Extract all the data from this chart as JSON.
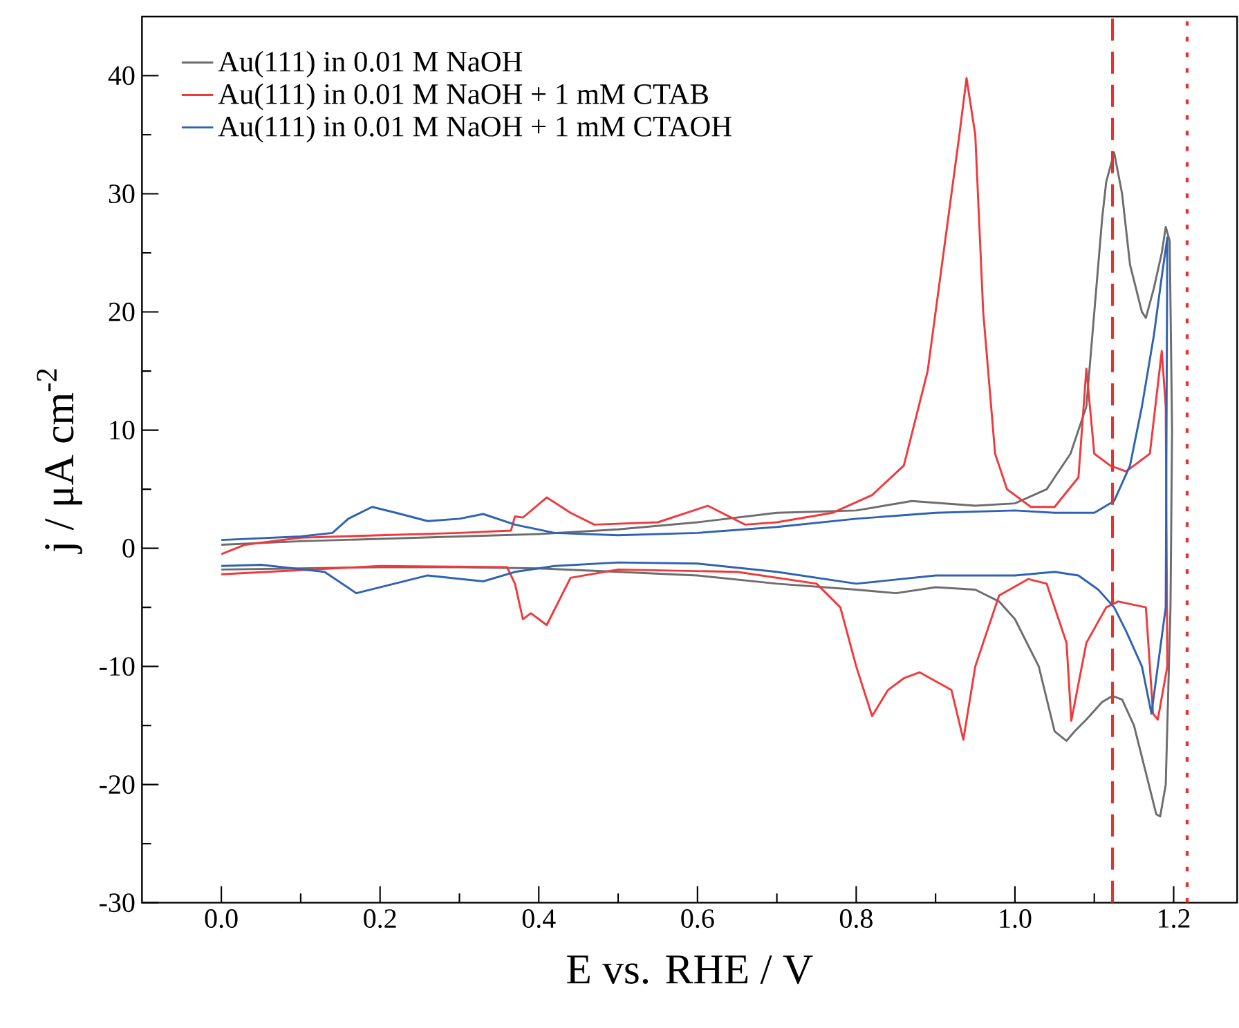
{
  "chart_data": {
    "type": "line",
    "xlabel": "E vs. RHE / V",
    "ylabel": "j / μA cm$^{-2}$",
    "xlim": [
      -0.1,
      1.28
    ],
    "ylim": [
      -30,
      45
    ],
    "xticks": [
      {
        "value": 0.0,
        "label": "0.0"
      },
      {
        "value": 0.1,
        "label": null
      },
      0.2,
      {
        "value": 0.3,
        "label": null
      },
      0.4,
      {
        "value": 0.5,
        "label": null
      },
      0.6,
      {
        "value": 0.7,
        "label": null
      },
      0.8,
      {
        "value": 0.9,
        "label": null
      },
      {
        "value": 1.0,
        "label": "1.0"
      },
      {
        "value": 1.1,
        "label": null
      },
      1.2
    ],
    "yticks": [
      -30,
      {
        "value": -25,
        "label": null
      },
      -20,
      {
        "value": -15,
        "label": null
      },
      -10,
      {
        "value": -5,
        "label": null
      },
      0,
      {
        "value": 5,
        "label": null
      },
      10,
      {
        "value": 15,
        "label": null
      },
      20,
      {
        "value": 25,
        "label": null
      },
      30,
      {
        "value": 35,
        "label": null
      },
      40
    ],
    "legend": "top left",
    "line_style": "solid",
    "marker": "none",
    "ref_lines": [
      {
        "axis": "x",
        "value": 1.123,
        "color": "#e8302f",
        "line_style": "dashed"
      },
      {
        "axis": "x",
        "value": 1.217,
        "color": "#e8302f",
        "line_style": "dotted"
      }
    ],
    "series": [
      {
        "name": "Au(111) in 0.01 M NaOH",
        "color": "#6d6d6d",
        "x": [
          0,
          0.1,
          0.2,
          0.3,
          0.4,
          0.5,
          0.6,
          0.7,
          0.8,
          0.87,
          0.95,
          1.0,
          1.04,
          1.07,
          1.09,
          1.1,
          1.11,
          1.115,
          1.125,
          1.135,
          1.145,
          1.16,
          1.165,
          1.175,
          1.185,
          1.19,
          1.195,
          1.198,
          1.196,
          1.19,
          1.183,
          1.178,
          1.165,
          1.15,
          1.135,
          1.123,
          1.11,
          1.09,
          1.075,
          1.065,
          1.05,
          1.03,
          1.0,
          0.98,
          0.95,
          0.9,
          0.85,
          0.8,
          0.7,
          0.6,
          0.5,
          0.4,
          0.3,
          0.2,
          0.1,
          0.0
        ],
        "values": [
          0.3,
          0.6,
          0.8,
          1.0,
          1.2,
          1.6,
          2.2,
          3.0,
          3.2,
          4.0,
          3.6,
          3.8,
          5,
          8,
          12,
          20,
          28,
          31,
          33.5,
          30,
          24,
          20,
          19.5,
          22,
          25,
          27.2,
          26,
          10,
          -5,
          -20,
          -22.7,
          -22.5,
          -19,
          -15,
          -12.8,
          -12.5,
          -13,
          -14.5,
          -15.5,
          -16.3,
          -15.5,
          -10,
          -6,
          -4.5,
          -3.5,
          -3.3,
          -3.8,
          -3.5,
          -3.0,
          -2.3,
          -2.0,
          -1.7,
          -1.6,
          -1.6,
          -1.7,
          -1.8
        ]
      },
      {
        "name": "Au(111) in 0.01 M NaOH + 1 mM CTAB",
        "color": "#f0393c",
        "x": [
          0,
          0.03,
          0.1,
          0.2,
          0.3,
          0.365,
          0.37,
          0.38,
          0.41,
          0.44,
          0.47,
          0.55,
          0.613,
          0.66,
          0.7,
          0.77,
          0.82,
          0.86,
          0.89,
          0.91,
          0.93,
          0.939,
          0.95,
          0.96,
          0.975,
          0.99,
          1.02,
          1.05,
          1.08,
          1.09,
          1.1,
          1.12,
          1.14,
          1.17,
          1.185,
          1.19,
          1.192,
          1.18,
          1.174,
          1.165,
          1.13,
          1.115,
          1.09,
          1.071,
          1.065,
          1.04,
          1.017,
          0.98,
          0.95,
          0.935,
          0.92,
          0.88,
          0.86,
          0.84,
          0.82,
          0.8,
          0.78,
          0.75,
          0.65,
          0.5,
          0.44,
          0.41,
          0.39,
          0.38,
          0.37,
          0.36,
          0.2,
          0.0
        ],
        "values": [
          -0.5,
          0.3,
          0.9,
          1.1,
          1.3,
          1.5,
          2.7,
          2.6,
          4.3,
          3.0,
          2.0,
          2.2,
          3.6,
          2.0,
          2.2,
          3.0,
          4.5,
          7,
          15,
          25,
          35,
          39.8,
          35,
          20,
          8,
          5,
          3.5,
          3.5,
          6,
          15.2,
          8,
          7,
          6.5,
          8,
          16.7,
          12,
          -10,
          -14.5,
          -14,
          -5,
          -4.5,
          -5,
          -8,
          -14.6,
          -8,
          -3,
          -2.6,
          -4,
          -10,
          -16.2,
          -12,
          -10.5,
          -11,
          -12,
          -14.2,
          -10,
          -5,
          -3,
          -2,
          -1.8,
          -2.5,
          -6.5,
          -5.5,
          -6,
          -3,
          -1.6,
          -1.5,
          -2.2
        ]
      },
      {
        "name": "Au(111) in 0.01 M NaOH + 1 mM CTAOH",
        "color": "#2f62b3",
        "x": [
          0,
          0.1,
          0.14,
          0.16,
          0.19,
          0.22,
          0.26,
          0.3,
          0.33,
          0.37,
          0.42,
          0.5,
          0.6,
          0.7,
          0.8,
          0.9,
          1.0,
          1.05,
          1.1,
          1.125,
          1.145,
          1.16,
          1.175,
          1.185,
          1.192,
          1.19,
          1.172,
          1.16,
          1.14,
          1.125,
          1.105,
          1.08,
          1.05,
          1.0,
          0.9,
          0.8,
          0.7,
          0.6,
          0.5,
          0.42,
          0.37,
          0.33,
          0.26,
          0.17,
          0.13,
          0.05,
          0.0
        ],
        "values": [
          0.7,
          1.0,
          1.3,
          2.5,
          3.5,
          3.0,
          2.3,
          2.5,
          2.9,
          2.0,
          1.3,
          1.1,
          1.3,
          1.8,
          2.5,
          3.0,
          3.2,
          3.0,
          3.0,
          4.0,
          7,
          12,
          18,
          23,
          26.3,
          -5,
          -14,
          -10,
          -7,
          -5,
          -3.5,
          -2.3,
          -2.0,
          -2.3,
          -2.3,
          -3.0,
          -2.0,
          -1.3,
          -1.2,
          -1.5,
          -2.0,
          -2.8,
          -2.3,
          -3.8,
          -2.0,
          -1.4,
          -1.5
        ]
      }
    ]
  }
}
